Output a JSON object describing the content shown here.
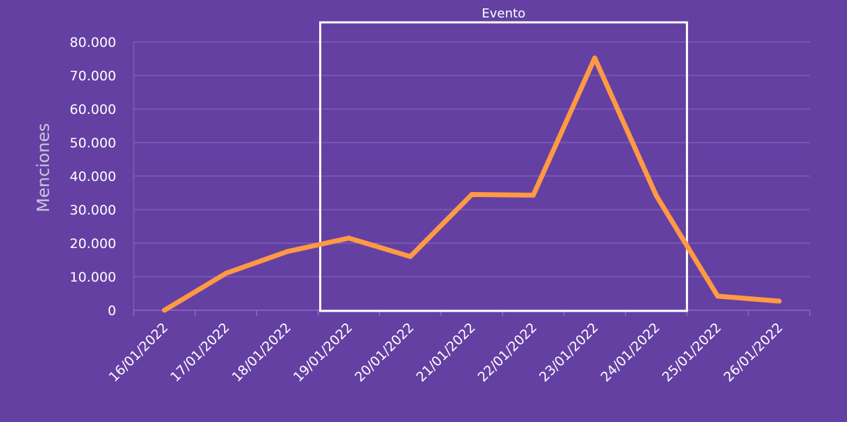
{
  "colors": {
    "background": "#6440a3",
    "line": "#ff9944",
    "grid": "#8a6cc0",
    "event_box": "#ffffff",
    "text": "#ffffff",
    "ylabel": "#c9c6dc"
  },
  "chart_data": {
    "type": "line",
    "title": "",
    "xlabel": "",
    "ylabel": "Menciones",
    "ylim": [
      0,
      80000
    ],
    "yticks": [
      "0",
      "10.000",
      "20.000",
      "30.000",
      "40.000",
      "50.000",
      "60.000",
      "70.000",
      "80.000"
    ],
    "ytick_values": [
      0,
      10000,
      20000,
      30000,
      40000,
      50000,
      60000,
      70000,
      80000
    ],
    "categories": [
      "16/01/2022",
      "17/01/2022",
      "18/01/2022",
      "19/01/2022",
      "20/01/2022",
      "21/01/2022",
      "22/01/2022",
      "23/01/2022",
      "24/01/2022",
      "25/01/2022",
      "26/01/2022"
    ],
    "x": [
      "16/01/2022 12h",
      "17/01/2022 12h",
      "18/01/2022 12h",
      "19/01/2022 12h",
      "20/01/2022 12h",
      "21/01/2022 12h",
      "22/01/2022 12h",
      "23/01/2022 12h",
      "24/01/2022 12h",
      "25/01/2022 12h",
      "26/01/2022 12h"
    ],
    "values": [
      0,
      11000,
      17500,
      21500,
      16000,
      34500,
      34300,
      75200,
      34200,
      4200,
      2700
    ],
    "grid": true,
    "annotation": {
      "label": "Evento",
      "start": "19/01/2022",
      "end": "25/01/2022"
    }
  }
}
